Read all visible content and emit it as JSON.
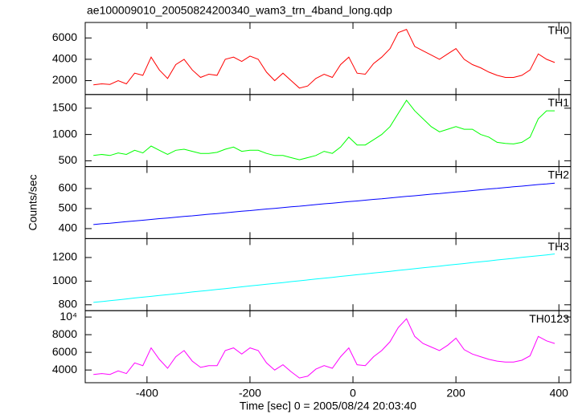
{
  "chart_data": [
    {
      "type": "line",
      "title": "ae100009010_20050824200340_wam3_trn_4band_long.qdp",
      "name": "TH0",
      "color": "#ff0000",
      "x": [
        -504,
        -488,
        -472,
        -456,
        -440,
        -424,
        -408,
        -392,
        -376,
        -360,
        -344,
        -328,
        -312,
        -296,
        -280,
        -264,
        -248,
        -232,
        -216,
        -200,
        -184,
        -168,
        -152,
        -136,
        -120,
        -104,
        -88,
        -72,
        -56,
        -40,
        -24,
        -8,
        8,
        24,
        40,
        56,
        72,
        88,
        104,
        120,
        136,
        152,
        168,
        184,
        200,
        216,
        232,
        248,
        264,
        280,
        296,
        312,
        328,
        344,
        360,
        376,
        392
      ],
      "values": [
        1600,
        1700,
        1650,
        2000,
        1700,
        2700,
        2500,
        4200,
        3000,
        2200,
        3500,
        4000,
        3000,
        2300,
        2600,
        2500,
        4000,
        4200,
        3800,
        4300,
        4000,
        2800,
        2000,
        2700,
        2000,
        1300,
        1500,
        2200,
        2600,
        2300,
        3500,
        4200,
        2700,
        2600,
        3600,
        4200,
        5000,
        6500,
        6800,
        5200,
        4800,
        4400,
        4000,
        4500,
        5000,
        4000,
        3500,
        3200,
        2800,
        2500,
        2300,
        2300,
        2500,
        3000,
        4500,
        4000,
        3700
      ],
      "xlim": [
        -520,
        423
      ],
      "ylim": [
        700,
        7450
      ],
      "yticks": [
        2000,
        4000,
        6000
      ]
    },
    {
      "type": "line",
      "name": "TH1",
      "color": "#00ff00",
      "x": [
        -504,
        -488,
        -472,
        -456,
        -440,
        -424,
        -408,
        -392,
        -376,
        -360,
        -344,
        -328,
        -312,
        -296,
        -280,
        -264,
        -248,
        -232,
        -216,
        -200,
        -184,
        -168,
        -152,
        -136,
        -120,
        -104,
        -88,
        -72,
        -56,
        -40,
        -24,
        -8,
        8,
        24,
        40,
        56,
        72,
        88,
        104,
        120,
        136,
        152,
        168,
        184,
        200,
        216,
        232,
        248,
        264,
        280,
        296,
        312,
        328,
        344,
        360,
        376,
        392
      ],
      "values": [
        600,
        620,
        600,
        650,
        620,
        700,
        650,
        780,
        700,
        620,
        700,
        720,
        680,
        640,
        640,
        660,
        720,
        760,
        680,
        700,
        700,
        640,
        600,
        600,
        560,
        520,
        560,
        600,
        680,
        640,
        760,
        950,
        800,
        800,
        900,
        1000,
        1150,
        1400,
        1650,
        1450,
        1300,
        1150,
        1050,
        1100,
        1150,
        1100,
        1100,
        1000,
        950,
        850,
        830,
        820,
        850,
        950,
        1300,
        1450,
        1450
      ],
      "xlim": [
        -520,
        423
      ],
      "ylim": [
        390,
        1760
      ],
      "yticks": [
        500,
        1000,
        1500
      ]
    },
    {
      "type": "line",
      "name": "TH2",
      "ylabel": "Counts/sec",
      "color": "#0000ff",
      "x": [
        -504,
        -488,
        -472,
        -456,
        -440,
        -424,
        -408,
        -392,
        -376,
        -360,
        -344,
        -328,
        -312,
        -296,
        -280,
        -264,
        -248,
        -232,
        -216,
        -200,
        -184,
        -168,
        -152,
        -136,
        -120,
        -104,
        -88,
        -72,
        -56,
        -40,
        -24,
        -8,
        8,
        24,
        40,
        56,
        72,
        88,
        104,
        120,
        136,
        152,
        168,
        184,
        200,
        216,
        232,
        248,
        264,
        280,
        296,
        312,
        328,
        344,
        360,
        376,
        392
      ],
      "values": [
        420,
        424,
        427,
        431,
        435,
        438,
        442,
        446,
        450,
        453,
        457,
        461,
        464,
        468,
        472,
        475,
        479,
        483,
        487,
        490,
        494,
        498,
        501,
        505,
        509,
        512,
        516,
        520,
        524,
        527,
        531,
        535,
        538,
        542,
        546,
        549,
        553,
        557,
        561,
        564,
        568,
        572,
        575,
        579,
        583,
        586,
        590,
        594,
        598,
        601,
        605,
        609,
        612,
        616,
        620,
        623,
        627
      ],
      "xlim": [
        -520,
        423
      ],
      "ylim": [
        350,
        710
      ],
      "yticks": [
        400,
        500,
        600
      ]
    },
    {
      "type": "line",
      "name": "TH3",
      "color": "#00ffff",
      "x": [
        -504,
        -488,
        -472,
        -456,
        -440,
        -424,
        -408,
        -392,
        -376,
        -360,
        -344,
        -328,
        -312,
        -296,
        -280,
        -264,
        -248,
        -232,
        -216,
        -200,
        -184,
        -168,
        -152,
        -136,
        -120,
        -104,
        -88,
        -72,
        -56,
        -40,
        -24,
        -8,
        8,
        24,
        40,
        56,
        72,
        88,
        104,
        120,
        136,
        152,
        168,
        184,
        200,
        216,
        232,
        248,
        264,
        280,
        296,
        312,
        328,
        344,
        360,
        376,
        392
      ],
      "values": [
        820,
        827,
        835,
        842,
        849,
        857,
        864,
        871,
        879,
        886,
        893,
        900,
        908,
        915,
        922,
        930,
        937,
        944,
        952,
        959,
        966,
        974,
        981,
        988,
        996,
        1003,
        1010,
        1018,
        1025,
        1032,
        1040,
        1047,
        1054,
        1061,
        1069,
        1076,
        1083,
        1091,
        1098,
        1105,
        1113,
        1120,
        1127,
        1135,
        1142,
        1149,
        1157,
        1164,
        1171,
        1179,
        1186,
        1193,
        1201,
        1208,
        1215,
        1222,
        1230
      ],
      "xlim": [
        -520,
        423
      ],
      "ylim": [
        750,
        1360
      ],
      "yticks": [
        800,
        1000,
        1200
      ]
    },
    {
      "type": "line",
      "name": "TH0123",
      "color": "#ff00ff",
      "xlabel": "Time [sec] 0 = 2005/08/24 20:03:40",
      "x": [
        -504,
        -488,
        -472,
        -456,
        -440,
        -424,
        -408,
        -392,
        -376,
        -360,
        -344,
        -328,
        -312,
        -296,
        -280,
        -264,
        -248,
        -232,
        -216,
        -200,
        -184,
        -168,
        -152,
        -136,
        -120,
        -104,
        -88,
        -72,
        -56,
        -40,
        -24,
        -8,
        8,
        24,
        40,
        56,
        72,
        88,
        104,
        120,
        136,
        152,
        168,
        184,
        200,
        216,
        232,
        248,
        264,
        280,
        296,
        312,
        328,
        344,
        360,
        376,
        392
      ],
      "values": [
        3500,
        3600,
        3500,
        3900,
        3600,
        4800,
        4500,
        6500,
        5200,
        4200,
        5500,
        6200,
        5000,
        4300,
        4500,
        4500,
        6200,
        6500,
        5800,
        6500,
        6200,
        4800,
        4000,
        4600,
        3800,
        3100,
        3300,
        4100,
        4500,
        4200,
        5500,
        6500,
        4600,
        4500,
        5500,
        6200,
        7200,
        8800,
        9800,
        7800,
        7000,
        6600,
        6200,
        6800,
        7600,
        6300,
        5800,
        5500,
        5200,
        5000,
        4900,
        4900,
        5100,
        5600,
        7800,
        7300,
        7000
      ],
      "xlim": [
        -520,
        423
      ],
      "ylim": [
        2560,
        10720
      ],
      "yticks": [
        4000,
        6000,
        8000,
        {
          "value": 10000,
          "label": "10⁴"
        }
      ],
      "xticks": [
        -400,
        -200,
        0,
        200,
        400
      ]
    }
  ]
}
